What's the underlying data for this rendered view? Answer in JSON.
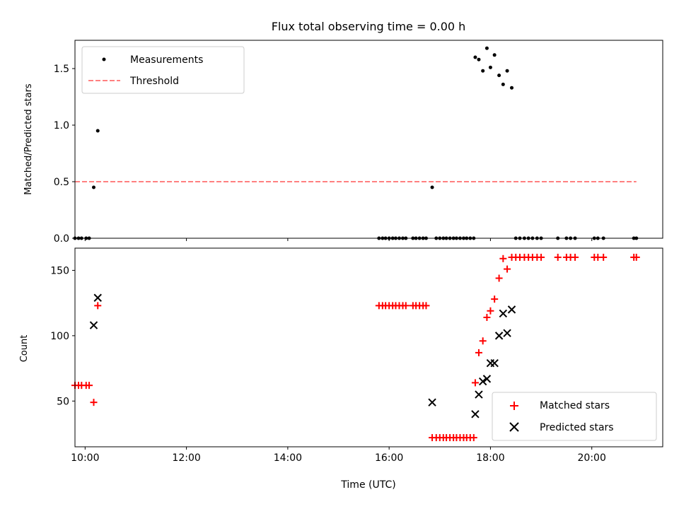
{
  "figure": {
    "title": "Flux total observing time = 0.00 h"
  },
  "chart_data": [
    {
      "type": "scatter",
      "ylabel": "Matched/Predicted stars",
      "xlabel": "",
      "xlim": [
        9.8,
        21.4
      ],
      "ylim": [
        0.0,
        1.75
      ],
      "yticks": [
        0.0,
        0.5,
        1.0,
        1.5
      ],
      "yticklabels": [
        "0.0",
        "0.5",
        "1.0",
        "1.5"
      ],
      "xticks": [
        10,
        12,
        14,
        16,
        18,
        20
      ],
      "legend_position": "top-left",
      "series": [
        {
          "name": "Measurements",
          "marker": "dot",
          "color": "#000000",
          "points": [
            [
              9.8,
              0.0
            ],
            [
              9.87,
              0.0
            ],
            [
              9.93,
              0.0
            ],
            [
              10.02,
              0.0
            ],
            [
              10.08,
              0.0
            ],
            [
              10.17,
              0.45
            ],
            [
              10.25,
              0.95
            ],
            [
              15.8,
              0.0
            ],
            [
              15.87,
              0.0
            ],
            [
              15.93,
              0.0
            ],
            [
              16.0,
              0.0
            ],
            [
              16.07,
              0.0
            ],
            [
              16.13,
              0.0
            ],
            [
              16.2,
              0.0
            ],
            [
              16.27,
              0.0
            ],
            [
              16.33,
              0.0
            ],
            [
              16.47,
              0.0
            ],
            [
              16.53,
              0.0
            ],
            [
              16.6,
              0.0
            ],
            [
              16.67,
              0.0
            ],
            [
              16.73,
              0.0
            ],
            [
              16.85,
              0.45
            ],
            [
              16.93,
              0.0
            ],
            [
              17.0,
              0.0
            ],
            [
              17.07,
              0.0
            ],
            [
              17.13,
              0.0
            ],
            [
              17.2,
              0.0
            ],
            [
              17.27,
              0.0
            ],
            [
              17.33,
              0.0
            ],
            [
              17.4,
              0.0
            ],
            [
              17.47,
              0.0
            ],
            [
              17.53,
              0.0
            ],
            [
              17.6,
              0.0
            ],
            [
              17.67,
              0.0
            ],
            [
              17.7,
              1.6
            ],
            [
              17.77,
              1.58
            ],
            [
              17.85,
              1.48
            ],
            [
              17.93,
              1.68
            ],
            [
              18.0,
              1.51
            ],
            [
              18.08,
              1.62
            ],
            [
              18.17,
              1.44
            ],
            [
              18.25,
              1.36
            ],
            [
              18.33,
              1.48
            ],
            [
              18.42,
              1.33
            ],
            [
              18.5,
              0.0
            ],
            [
              18.58,
              0.0
            ],
            [
              18.67,
              0.0
            ],
            [
              18.75,
              0.0
            ],
            [
              18.83,
              0.0
            ],
            [
              18.92,
              0.0
            ],
            [
              19.0,
              0.0
            ],
            [
              19.33,
              0.0
            ],
            [
              19.5,
              0.0
            ],
            [
              19.58,
              0.0
            ],
            [
              19.67,
              0.0
            ],
            [
              20.05,
              0.0
            ],
            [
              20.12,
              0.0
            ],
            [
              20.23,
              0.0
            ],
            [
              20.83,
              0.0
            ],
            [
              20.88,
              0.0
            ]
          ]
        },
        {
          "name": "Threshold",
          "marker": "dashed-line",
          "color": "#ff8080",
          "points": [
            [
              9.8,
              0.5
            ],
            [
              20.88,
              0.5
            ]
          ]
        }
      ]
    },
    {
      "type": "scatter",
      "ylabel": "Count",
      "xlabel": "Time (UTC)",
      "xlim": [
        9.8,
        21.4
      ],
      "ylim": [
        15,
        167
      ],
      "yticks": [
        50,
        100,
        150
      ],
      "yticklabels": [
        "50",
        "100",
        "150"
      ],
      "xticks": [
        10,
        12,
        14,
        16,
        18,
        20
      ],
      "xticklabels": [
        "10:00",
        "12:00",
        "14:00",
        "16:00",
        "18:00",
        "20:00"
      ],
      "legend_position": "bottom-right",
      "series": [
        {
          "name": "Matched stars",
          "marker": "plus",
          "color": "#ff0000",
          "points": [
            [
              9.8,
              62
            ],
            [
              9.87,
              62
            ],
            [
              9.93,
              62
            ],
            [
              10.02,
              62
            ],
            [
              10.08,
              62
            ],
            [
              10.17,
              49
            ],
            [
              10.25,
              123
            ],
            [
              15.8,
              123
            ],
            [
              15.87,
              123
            ],
            [
              15.93,
              123
            ],
            [
              16.0,
              123
            ],
            [
              16.07,
              123
            ],
            [
              16.13,
              123
            ],
            [
              16.2,
              123
            ],
            [
              16.27,
              123
            ],
            [
              16.33,
              123
            ],
            [
              16.47,
              123
            ],
            [
              16.53,
              123
            ],
            [
              16.6,
              123
            ],
            [
              16.67,
              123
            ],
            [
              16.73,
              123
            ],
            [
              16.85,
              22
            ],
            [
              16.93,
              22
            ],
            [
              17.0,
              22
            ],
            [
              17.07,
              22
            ],
            [
              17.13,
              22
            ],
            [
              17.2,
              22
            ],
            [
              17.27,
              22
            ],
            [
              17.33,
              22
            ],
            [
              17.4,
              22
            ],
            [
              17.47,
              22
            ],
            [
              17.53,
              22
            ],
            [
              17.6,
              22
            ],
            [
              17.67,
              22
            ],
            [
              17.7,
              64
            ],
            [
              17.77,
              87
            ],
            [
              17.85,
              96
            ],
            [
              17.93,
              114
            ],
            [
              18.0,
              119
            ],
            [
              18.08,
              128
            ],
            [
              18.17,
              144
            ],
            [
              18.25,
              159
            ],
            [
              18.33,
              151
            ],
            [
              18.42,
              160
            ],
            [
              18.5,
              160
            ],
            [
              18.58,
              160
            ],
            [
              18.67,
              160
            ],
            [
              18.75,
              160
            ],
            [
              18.83,
              160
            ],
            [
              18.92,
              160
            ],
            [
              19.0,
              160
            ],
            [
              19.33,
              160
            ],
            [
              19.5,
              160
            ],
            [
              19.58,
              160
            ],
            [
              19.67,
              160
            ],
            [
              20.05,
              160
            ],
            [
              20.12,
              160
            ],
            [
              20.23,
              160
            ],
            [
              20.83,
              160
            ],
            [
              20.88,
              160
            ]
          ]
        },
        {
          "name": "Predicted stars",
          "marker": "x",
          "color": "#000000",
          "points": [
            [
              10.17,
              108
            ],
            [
              10.25,
              129
            ],
            [
              16.85,
              49
            ],
            [
              17.7,
              40
            ],
            [
              17.77,
              55
            ],
            [
              17.85,
              65
            ],
            [
              17.93,
              67
            ],
            [
              18.0,
              79
            ],
            [
              18.08,
              79
            ],
            [
              18.17,
              100
            ],
            [
              18.25,
              117
            ],
            [
              18.33,
              102
            ],
            [
              18.42,
              120
            ]
          ]
        }
      ]
    }
  ]
}
